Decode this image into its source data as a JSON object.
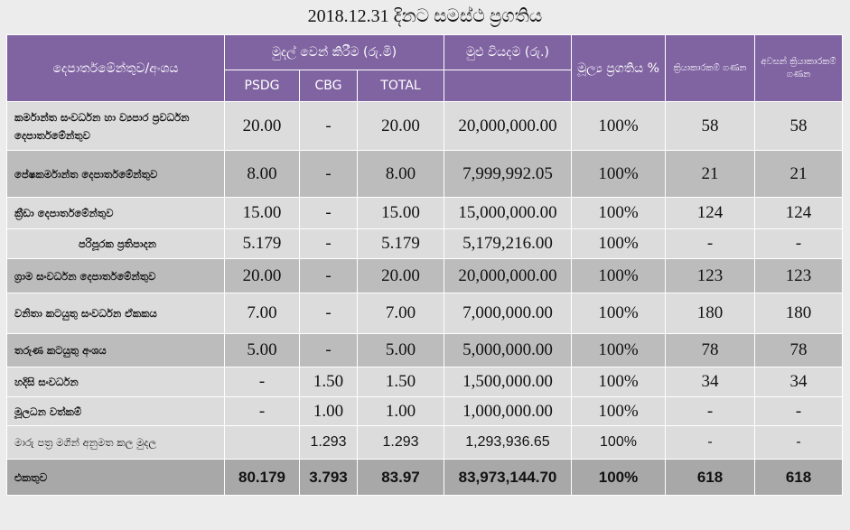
{
  "title": "2018.12.31 දිනට සමස්ථ ප්‍රගතිය",
  "header": {
    "dept": "දෙපාර්තමේන්තුව/අංශය",
    "allocation": "මුදල් වෙන් කිරීම (රු.මි)",
    "psdg": "PSDG",
    "cbg": "CBG",
    "total": "TOTAL",
    "expense": "මුළු වියදම (රු.)",
    "financial_progress": "මූල්‍ය ප්‍රගතිය %",
    "activity_count": "ක්‍රියාකාරකම් ගණන",
    "completed_count": "අවසන් ක්‍රියාකාරකම් ගණන"
  },
  "rows": [
    {
      "name": "කර්මාන්ත සංවර්ධන හා ව්‍යපාර ප්‍රවර්ධන දෙපාර්තමේන්තුව",
      "psdg": "20.00",
      "cbg": "-",
      "total": "20.00",
      "expense": "20,000,000.00",
      "pct": "100%",
      "activities": "58",
      "completed": "58"
    },
    {
      "name": "පේෂකර්මාන්ත දෙපාර්තමේන්තුව",
      "psdg": "8.00",
      "cbg": "-",
      "total": "8.00",
      "expense": "7,999,992.05",
      "pct": "100%",
      "activities": "21",
      "completed": "21"
    },
    {
      "name": "ක්‍රීඩා දෙපාර්තමේන්තුව",
      "psdg": "15.00",
      "cbg": "-",
      "total": "15.00",
      "expense": "15,000,000.00",
      "pct": "100%",
      "activities": "124",
      "completed": "124"
    },
    {
      "name": "පරිපූරක ප්‍රතිපාදන",
      "psdg": "5.179",
      "cbg": "-",
      "total": "5.179",
      "expense": "5,179,216.00",
      "pct": "100%",
      "activities": "-",
      "completed": "-"
    },
    {
      "name": "ග්‍රාම සංවර්ධන දෙපාර්තමේන්තුව",
      "psdg": "20.00",
      "cbg": "-",
      "total": "20.00",
      "expense": "20,000,000.00",
      "pct": "100%",
      "activities": "123",
      "completed": "123"
    },
    {
      "name": "වනිතා කටයුතු සංවර්ධන ඒකකය",
      "psdg": "7.00",
      "cbg": "-",
      "total": "7.00",
      "expense": "7,000,000.00",
      "pct": "100%",
      "activities": "180",
      "completed": "180"
    },
    {
      "name": "තරුණ කටයුතු අංශය",
      "psdg": "5.00",
      "cbg": "-",
      "total": "5.00",
      "expense": "5,000,000.00",
      "pct": "100%",
      "activities": "78",
      "completed": "78"
    },
    {
      "name": "හදිසි සංවර්ධන",
      "psdg": "-",
      "cbg": "1.50",
      "total": "1.50",
      "expense": "1,500,000.00",
      "pct": "100%",
      "activities": "34",
      "completed": "34"
    },
    {
      "name": "මූලධන වත්කම්",
      "psdg": "-",
      "cbg": "1.00",
      "total": "1.00",
      "expense": "1,000,000.00",
      "pct": "100%",
      "activities": "-",
      "completed": "-"
    },
    {
      "name": "මාරු පත්‍ර මගින් අනුමත කල මුදල",
      "psdg": "",
      "cbg": "1.293",
      "total": "1.293",
      "expense": "1,293,936.65",
      "pct": "100%",
      "activities": "-",
      "completed": "-"
    }
  ],
  "total_row": {
    "name": "එකතුව",
    "psdg": "80.179",
    "cbg": "3.793",
    "total": "83.97",
    "expense": "83,973,144.70",
    "pct": "100%",
    "activities": "618",
    "completed": "618"
  }
}
